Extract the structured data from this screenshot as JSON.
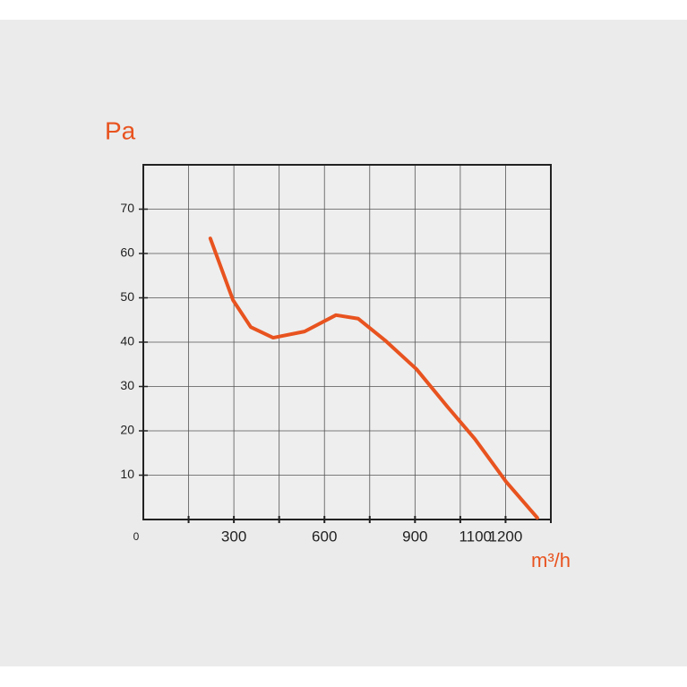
{
  "chart_data": {
    "type": "line",
    "y_label": "Pa",
    "x_label": "m³/h",
    "x": [
      222,
      297,
      356,
      430,
      534,
      638,
      712,
      801,
      905,
      1009,
      1098,
      1202,
      1305
    ],
    "series": [
      {
        "color": "#e8531f",
        "values": [
          63.4,
          49.5,
          43.4,
          41.0,
          42.4,
          46.1,
          45.3,
          40.4,
          33.9,
          25.3,
          18.2,
          8.5,
          0.4
        ]
      }
    ],
    "xlim": [
      0,
      1350
    ],
    "xticks": [
      0,
      300,
      600,
      900,
      1100,
      1200
    ],
    "xgrid": [
      150,
      300,
      450,
      600,
      750,
      900,
      1050,
      1200,
      1350
    ],
    "ylim": [
      0,
      80
    ],
    "yticks": [
      10,
      20,
      30,
      40,
      50,
      60,
      70
    ],
    "grid": true
  }
}
